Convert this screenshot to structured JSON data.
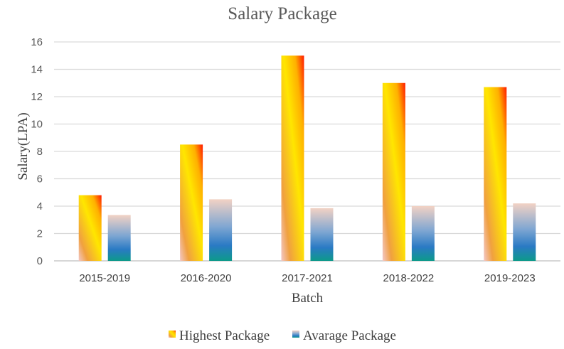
{
  "chart_data": {
    "type": "bar",
    "title": "Salary Package",
    "xlabel": "Batch",
    "ylabel": "Salary(LPA)",
    "categories": [
      "2015-2019",
      "2016-2020",
      "2017-2021",
      "2018-2022",
      "2019-2023"
    ],
    "series": [
      {
        "name": "Highest Package",
        "values": [
          4.8,
          8.5,
          15,
          13,
          12.7
        ]
      },
      {
        "name": "Avarage Package",
        "values": [
          3.35,
          4.5,
          3.85,
          4,
          4.2
        ]
      }
    ],
    "ylim": [
      0,
      16
    ],
    "yticks": [
      0,
      2,
      4,
      6,
      8,
      10,
      12,
      14,
      16
    ],
    "grid": true,
    "legend": "bottom"
  }
}
